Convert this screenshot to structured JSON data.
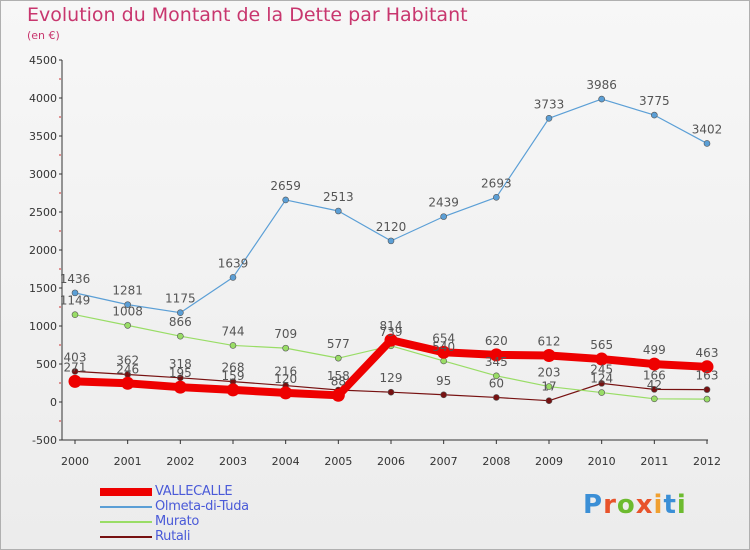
{
  "header": {
    "title": "Evolution du Montant de la Dette par Habitant",
    "subtitle": "(en €)"
  },
  "logo": {
    "text": "Proxiti",
    "colors": [
      "#3b8fd6",
      "#e8532b",
      "#6dbb2f",
      "#e8532b",
      "#f0a030",
      "#3b8fd6",
      "#6dbb2f"
    ]
  },
  "chart_data": {
    "type": "line",
    "title": "Evolution du Montant de la Dette par Habitant",
    "ylabel": "(en €)",
    "xlabel": "",
    "x": [
      "2000",
      "2001",
      "2002",
      "2003",
      "2004",
      "2005",
      "2006",
      "2007",
      "2008",
      "2009",
      "2010",
      "2011",
      "2012"
    ],
    "ylim": [
      -500,
      4500
    ],
    "yticks": [
      -500,
      0,
      500,
      1000,
      1500,
      2000,
      2500,
      3000,
      3500,
      4000,
      4500
    ],
    "grid": false,
    "legend_position": "bottom-left",
    "series": [
      {
        "name": "VALLECALLE",
        "color": "#ee0000",
        "values": [
          271,
          246,
          195,
          159,
          120,
          88,
          814,
          654,
          620,
          612,
          565,
          499,
          463
        ],
        "labels": [
          "271",
          "246",
          "195",
          "159",
          "120",
          "88",
          "814",
          "654",
          "620",
          "612",
          "565",
          "499",
          "463"
        ]
      },
      {
        "name": "Olmeta-di-Tuda",
        "color": "#5b9fd6",
        "values": [
          1436,
          1281,
          1175,
          1639,
          2659,
          2513,
          2120,
          2439,
          2693,
          3733,
          3986,
          3775,
          3402
        ],
        "labels": [
          "1436",
          "1281",
          "1175",
          "1639",
          "2659",
          "2513",
          "2120",
          "2439",
          "2693",
          "3733",
          "3986",
          "3775",
          "3402"
        ]
      },
      {
        "name": "Murato",
        "color": "#99dd66",
        "values": [
          1149,
          1008,
          866,
          744,
          709,
          577,
          739,
          540,
          345,
          203,
          124,
          42,
          38
        ],
        "labels": [
          "1149",
          "1008",
          "866",
          "744",
          "709",
          "577",
          "739",
          "540",
          "345",
          "203",
          "124",
          "42",
          ""
        ]
      },
      {
        "name": "Rutali",
        "color": "#771111",
        "values": [
          403,
          362,
          318,
          268,
          216,
          158,
          129,
          95,
          60,
          17,
          245,
          166,
          163
        ],
        "labels": [
          "403",
          "362",
          "318",
          "268",
          "216",
          "158",
          "129",
          "95",
          "60",
          "17",
          "245",
          "166",
          "163"
        ]
      }
    ]
  }
}
